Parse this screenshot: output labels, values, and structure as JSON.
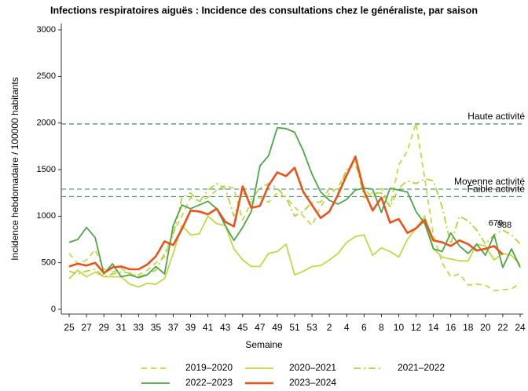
{
  "chart_data": {
    "type": "line",
    "title": "Infections respiratoires aiguës : Incidence des consultations chez le généraliste, par saison",
    "x_label": "Semaine",
    "y_label": "Incidence hebdomadaire / 100000 habitants",
    "categories": [
      "25",
      null,
      "27",
      null,
      "29",
      null,
      "31",
      null,
      "33",
      null,
      "35",
      null,
      "37",
      null,
      "39",
      null,
      "41",
      null,
      "43",
      null,
      "45",
      null,
      "47",
      null,
      "49",
      null,
      "51",
      null,
      "53",
      null,
      "2",
      null,
      "4",
      null,
      "6",
      null,
      "8",
      null,
      "10",
      null,
      "12",
      null,
      "14",
      null,
      "16",
      null,
      "18",
      null,
      "20",
      null,
      "22",
      null,
      "24"
    ],
    "ylim": [
      0,
      3000
    ],
    "yticks": [
      0,
      500,
      1000,
      1500,
      2000,
      2500,
      3000
    ],
    "reference_lines": [
      {
        "value": 1990,
        "label": "Haute activité",
        "color": "#3c8a6c"
      },
      {
        "value": 1290,
        "label": "Moyenne activité",
        "color": "#3c8a6c"
      },
      {
        "value": 1210,
        "label": "Faible activité",
        "color": "#3c8a6c"
      }
    ],
    "series": [
      {
        "name": "2019–2020",
        "color": "#c5d84a",
        "dash": "dashed",
        "values": [
          600,
          490,
          530,
          640,
          430,
          400,
          440,
          380,
          370,
          420,
          500,
          560,
          820,
          1000,
          1200,
          1160,
          1200,
          1280,
          1330,
          1300,
          960,
          1150,
          1200,
          1150,
          1250,
          1200,
          1100,
          1000,
          900,
          1100,
          1250,
          1300,
          1500,
          1550,
          1300,
          1200,
          1300,
          1100,
          1550,
          1700,
          2000,
          1400,
          800,
          500,
          350,
          380,
          260,
          270,
          260,
          200,
          210,
          220,
          280
        ]
      },
      {
        "name": "2020–2021",
        "color": "#c2d846",
        "dash": "solid",
        "values": [
          330,
          420,
          350,
          400,
          350,
          350,
          350,
          270,
          240,
          280,
          270,
          330,
          600,
          900,
          800,
          810,
          1000,
          920,
          900,
          650,
          530,
          460,
          460,
          600,
          620,
          700,
          370,
          410,
          460,
          470,
          530,
          600,
          720,
          780,
          800,
          580,
          660,
          620,
          560,
          750,
          870,
          1000,
          650,
          560,
          540,
          520,
          520,
          700,
          680,
          530,
          600,
          580,
          480
        ]
      },
      {
        "name": "2021–2022",
        "color": "#b6d23e",
        "dash": "dashdot",
        "values": [
          410,
          380,
          410,
          430,
          350,
          380,
          400,
          390,
          350,
          380,
          420,
          600,
          800,
          1200,
          1250,
          1150,
          1280,
          1350,
          1300,
          1000,
          1250,
          1180,
          1300,
          1350,
          1300,
          1200,
          1000,
          1050,
          1150,
          1150,
          1300,
          1250,
          1500,
          1600,
          1200,
          1250,
          1250,
          1100,
          1300,
          1380,
          1350,
          1400,
          1380,
          1100,
          700,
          1000,
          950,
          850,
          700,
          800,
          850,
          800,
          700
        ]
      },
      {
        "name": "2022–2023",
        "color": "#4ea54a",
        "dash": "solid",
        "values": [
          720,
          750,
          880,
          770,
          380,
          490,
          350,
          370,
          340,
          370,
          460,
          380,
          900,
          1120,
          1080,
          1120,
          1160,
          1080,
          900,
          740,
          880,
          1050,
          1540,
          1650,
          1950,
          1940,
          1900,
          1700,
          1450,
          1260,
          1170,
          1130,
          1180,
          1280,
          1300,
          1290,
          1040,
          1300,
          1280,
          1260,
          1050,
          920,
          650,
          620,
          820,
          680,
          600,
          700,
          580,
          800,
          450,
          650,
          450
        ]
      },
      {
        "name": "2023–2024",
        "color": "#e8541c",
        "dash": "solid",
        "width": 2.6,
        "values": [
          460,
          490,
          470,
          500,
          390,
          450,
          460,
          430,
          430,
          480,
          570,
          730,
          690,
          860,
          1060,
          1050,
          1020,
          1080,
          940,
          890,
          1320,
          1090,
          1110,
          1330,
          1470,
          1430,
          1520,
          1260,
          1120,
          980,
          1050,
          1230,
          1440,
          1640,
          1270,
          1060,
          1200,
          930,
          970,
          820,
          870,
          960,
          740,
          720,
          680,
          740,
          700,
          630,
          650,
          679,
          588,
          null,
          null
        ],
        "value_labels": [
          null,
          null,
          null,
          null,
          null,
          null,
          null,
          null,
          null,
          null,
          null,
          null,
          null,
          null,
          null,
          null,
          null,
          null,
          null,
          null,
          null,
          null,
          null,
          null,
          null,
          null,
          null,
          null,
          null,
          null,
          null,
          null,
          null,
          null,
          null,
          null,
          null,
          null,
          null,
          null,
          null,
          null,
          null,
          null,
          null,
          null,
          null,
          null,
          null,
          "679",
          "588",
          null,
          null
        ]
      }
    ]
  }
}
